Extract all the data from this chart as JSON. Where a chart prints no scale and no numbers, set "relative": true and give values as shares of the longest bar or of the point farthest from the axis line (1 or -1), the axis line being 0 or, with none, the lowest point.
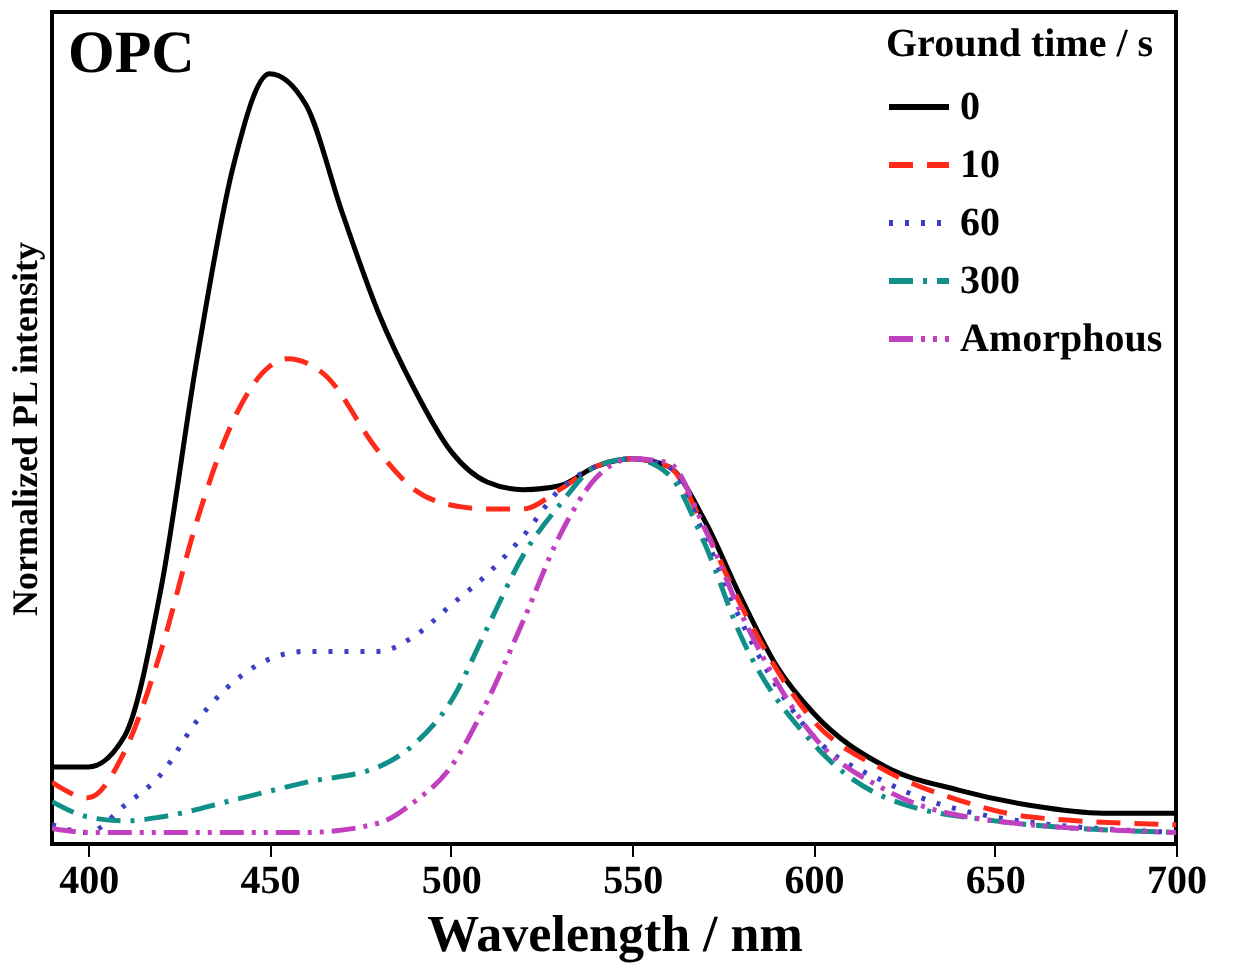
{
  "chart_data": {
    "type": "line",
    "relative": true,
    "xlabel": "Wavelength / nm",
    "ylabel": "Normalized PL intensity",
    "legend_title": "Ground time / s",
    "legend": "top right",
    "annotations": [
      "OPC"
    ],
    "xlim": [
      390,
      700
    ],
    "xticks": [
      400,
      450,
      500,
      550,
      600,
      650,
      700
    ],
    "grid": false,
    "series": [
      {
        "name": "0",
        "color": "#000000",
        "line_style": "solid",
        "x": [
          390,
          400,
          410,
          420,
          430,
          440,
          450,
          460,
          470,
          480,
          490,
          500,
          510,
          520,
          530,
          540,
          550,
          560,
          570,
          580,
          590,
          600,
          620,
          640,
          660,
          680,
          700
        ],
        "values": [
          0.1,
          0.1,
          0.14,
          0.33,
          0.63,
          0.88,
          1.0,
          0.96,
          0.82,
          0.69,
          0.59,
          0.51,
          0.47,
          0.46,
          0.465,
          0.49,
          0.5,
          0.49,
          0.42,
          0.32,
          0.23,
          0.17,
          0.1,
          0.07,
          0.05,
          0.04,
          0.04
        ]
      },
      {
        "name": "10",
        "color": "#ff2a1a",
        "line_style": "dashed",
        "x": [
          390,
          400,
          410,
          420,
          430,
          440,
          450,
          455,
          465,
          480,
          490,
          500,
          510,
          520,
          530,
          540,
          550,
          560,
          570,
          580,
          600,
          620,
          640,
          660,
          700
        ],
        "values": [
          0.08,
          0.06,
          0.12,
          0.25,
          0.42,
          0.55,
          0.62,
          0.63,
          0.61,
          0.51,
          0.46,
          0.44,
          0.435,
          0.435,
          0.46,
          0.49,
          0.5,
          0.49,
          0.41,
          0.31,
          0.16,
          0.095,
          0.057,
          0.035,
          0.025
        ]
      },
      {
        "name": "60",
        "color": "#3b3fc4",
        "line_style": "dotted",
        "x": [
          390,
          400,
          410,
          420,
          430,
          440,
          450,
          460,
          470,
          480,
          490,
          500,
          510,
          520,
          530,
          540,
          550,
          560,
          570,
          580,
          600,
          620,
          650,
          700
        ],
        "values": [
          0.025,
          0.015,
          0.05,
          0.09,
          0.16,
          0.21,
          0.24,
          0.25,
          0.25,
          0.25,
          0.27,
          0.31,
          0.35,
          0.4,
          0.46,
          0.49,
          0.5,
          0.49,
          0.4,
          0.29,
          0.14,
          0.08,
          0.035,
          0.015
        ]
      },
      {
        "name": "300",
        "color": "#11908a",
        "line_style": "dashdot",
        "x": [
          390,
          400,
          410,
          420,
          440,
          460,
          480,
          490,
          500,
          510,
          520,
          530,
          540,
          550,
          560,
          570,
          580,
          600,
          620,
          650,
          700
        ],
        "values": [
          0.055,
          0.035,
          0.03,
          0.035,
          0.057,
          0.08,
          0.1,
          0.13,
          0.185,
          0.28,
          0.375,
          0.44,
          0.49,
          0.5,
          0.48,
          0.39,
          0.27,
          0.13,
          0.06,
          0.03,
          0.015
        ]
      },
      {
        "name": "Amorphous",
        "color": "#c040c0",
        "line_style": "dashdotdot",
        "x": [
          390,
          400,
          420,
          440,
          460,
          480,
          490,
          500,
          510,
          520,
          530,
          540,
          550,
          560,
          570,
          580,
          600,
          620,
          650,
          700
        ],
        "values": [
          0.02,
          0.015,
          0.015,
          0.015,
          0.015,
          0.027,
          0.055,
          0.1,
          0.185,
          0.29,
          0.4,
          0.475,
          0.5,
          0.495,
          0.41,
          0.3,
          0.14,
          0.07,
          0.03,
          0.015
        ]
      }
    ]
  }
}
